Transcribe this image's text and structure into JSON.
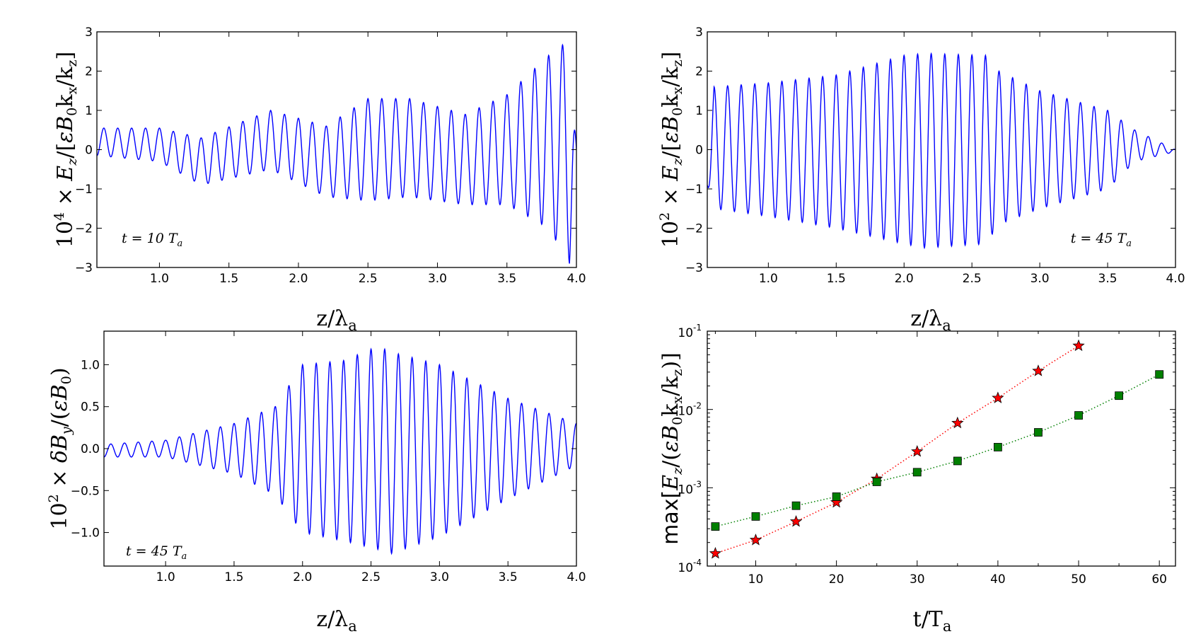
{
  "chart_data": [
    {
      "type": "line",
      "ylabel": "10⁴ × E_z/[εB₀k_x/k_z]",
      "xlabel": "z/λ_a",
      "annotation": "t = 10 T_a",
      "xlim": [
        0.55,
        4.0
      ],
      "ylim": [
        -3,
        3
      ],
      "xticks": [
        "1.0",
        "1.5",
        "2.0",
        "2.5",
        "3.0",
        "3.5",
        "4.0"
      ],
      "yticks": [
        "3",
        "2",
        "1",
        "0",
        "−1",
        "−2",
        "−3"
      ],
      "series_color": "#0000ff",
      "envelope": {
        "z": [
          0.55,
          1.0,
          1.3,
          1.8,
          2.2,
          2.5,
          2.8,
          3.2,
          3.5,
          3.8,
          3.95,
          4.0
        ],
        "upper": [
          0.55,
          0.55,
          0.3,
          1.0,
          0.6,
          1.3,
          1.3,
          0.9,
          1.4,
          2.4,
          2.8,
          0.0
        ],
        "lower": [
          -0.15,
          -0.3,
          -0.9,
          -0.5,
          -1.2,
          -1.3,
          -1.2,
          -1.4,
          -1.4,
          -2.0,
          -2.9,
          0.0
        ]
      }
    },
    {
      "type": "line",
      "ylabel": "10² × E_z/[εB₀k_x/k_z]",
      "xlabel": "z/λ_a",
      "annotation": "t = 45 T_a",
      "xlim": [
        0.55,
        4.0
      ],
      "ylim": [
        -3,
        3
      ],
      "xticks": [
        "1.0",
        "1.5",
        "2.0",
        "2.5",
        "3.0",
        "3.5",
        "4.0"
      ],
      "yticks": [
        "3",
        "2",
        "1",
        "0",
        "−1",
        "−2",
        "−3"
      ],
      "series_color": "#0000ff",
      "envelope": {
        "z": [
          0.55,
          0.6,
          1.0,
          1.5,
          2.0,
          2.15,
          2.6,
          2.7,
          3.0,
          3.5,
          3.7,
          4.0
        ],
        "upper": [
          -0.9,
          1.6,
          1.7,
          1.9,
          2.4,
          2.45,
          2.4,
          2.0,
          1.5,
          1.0,
          0.5,
          0.0
        ],
        "lower": [
          -0.9,
          -1.5,
          -1.7,
          -2.0,
          -2.4,
          -2.5,
          -2.4,
          -1.9,
          -1.5,
          -1.0,
          -0.3,
          -0.05
        ]
      }
    },
    {
      "type": "line",
      "ylabel": "10² × δB_y/(εB₀)",
      "xlabel": "z/λ_a",
      "annotation": "t = 45 T_a",
      "xlim": [
        0.55,
        4.0
      ],
      "ylim": [
        -1.4,
        1.4
      ],
      "xticks": [
        "1.0",
        "1.5",
        "2.0",
        "2.5",
        "3.0",
        "3.5",
        "4.0"
      ],
      "yticks": [
        "1.0",
        "0.5",
        "0.0",
        "−0.5",
        "−1.0"
      ],
      "series_color": "#0000ff",
      "envelope": {
        "z": [
          0.55,
          1.0,
          1.5,
          1.8,
          2.0,
          2.3,
          2.55,
          2.65,
          3.0,
          3.5,
          4.0
        ],
        "upper": [
          0.05,
          0.1,
          0.3,
          0.5,
          1.0,
          1.05,
          1.22,
          1.15,
          1.0,
          0.6,
          0.3
        ],
        "lower": [
          -0.1,
          -0.1,
          -0.3,
          -0.55,
          -1.0,
          -1.1,
          -1.2,
          -1.25,
          -1.05,
          -0.6,
          -0.2
        ]
      }
    },
    {
      "type": "scatter",
      "ylabel": "max[E_z/(εB₀k_x/k_z)]",
      "xlabel": "t/T_a",
      "yscale": "log",
      "xlim": [
        4,
        62
      ],
      "ylim": [
        0.0001,
        0.1
      ],
      "xticks": [
        "10",
        "20",
        "30",
        "40",
        "50",
        "60"
      ],
      "ytick_base": "10",
      "ytick_exponents": [
        "-1",
        "-2",
        "-3",
        "-4"
      ],
      "series": [
        {
          "marker": "star",
          "color": "#ff0000",
          "x": [
            5,
            10,
            15,
            20,
            25,
            30,
            35,
            40,
            45,
            50
          ],
          "y": [
            0.000145,
            0.000215,
            0.00037,
            0.00065,
            0.0013,
            0.0029,
            0.0067,
            0.014,
            0.031,
            0.065
          ]
        },
        {
          "marker": "square",
          "color": "#008000",
          "x": [
            5,
            10,
            15,
            20,
            25,
            30,
            35,
            40,
            45,
            50,
            55,
            60
          ],
          "y": [
            0.00032,
            0.00043,
            0.00059,
            0.00077,
            0.00119,
            0.00158,
            0.0022,
            0.0033,
            0.0051,
            0.0084,
            0.015,
            0.028
          ]
        }
      ]
    }
  ]
}
